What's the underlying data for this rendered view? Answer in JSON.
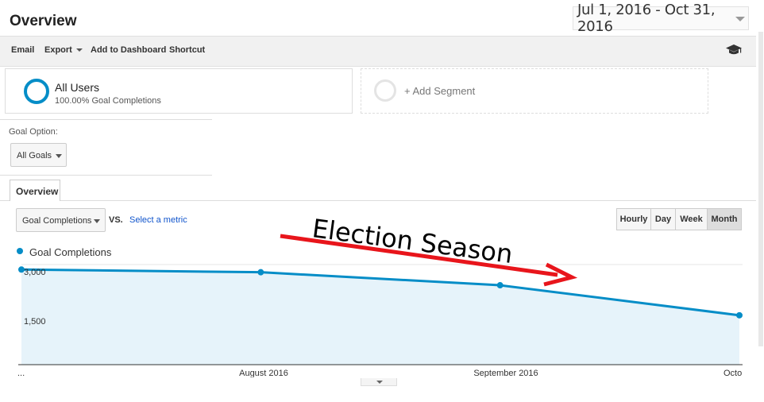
{
  "header": {
    "title": "Overview",
    "date_range": "Jul 1, 2016 - Oct 31, 2016"
  },
  "toolbar": {
    "email": "Email",
    "export": "Export",
    "add_to_dashboard": "Add to Dashboard",
    "shortcut": "Shortcut"
  },
  "segments": {
    "all_users_name": "All Users",
    "all_users_sub": "100.00% Goal Completions",
    "add_segment": "+ Add Segment"
  },
  "goal_option": {
    "label": "Goal Option:",
    "value": "All Goals"
  },
  "tabs": {
    "overview": "Overview"
  },
  "controls": {
    "metric": "Goal Completions",
    "vs": "VS.",
    "select_metric": "Select a metric",
    "granularity": [
      "Hourly",
      "Day",
      "Week",
      "Month"
    ],
    "active_granularity": "Month"
  },
  "annotation": {
    "text": "Election Season",
    "color": "#e8151b"
  },
  "colors": {
    "accent": "#058dc7",
    "area_fill": "#e6f3fa"
  },
  "chart_data": {
    "type": "area",
    "series": [
      {
        "name": "Goal Completions",
        "values": [
          2850,
          2770,
          2380,
          1480
        ]
      }
    ],
    "x_tick_labels": [
      "...",
      "August 2016",
      "September 2016",
      "Octo"
    ],
    "y_tick_labels": [
      "3,000",
      "1,500"
    ],
    "ylim": [
      0,
      3000
    ],
    "grid": true
  }
}
